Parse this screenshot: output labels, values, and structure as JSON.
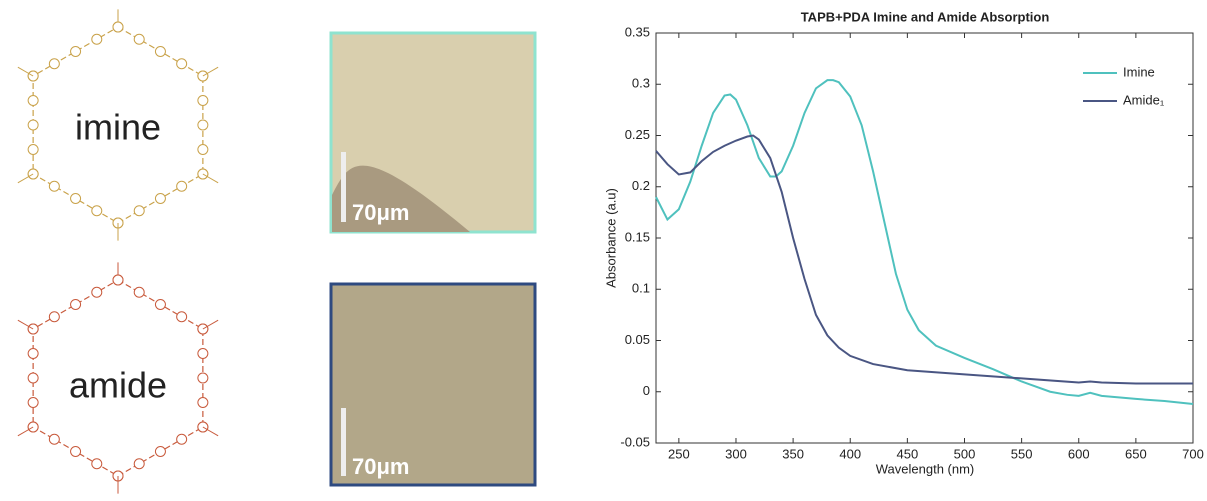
{
  "panels": {
    "structures": [
      "imine",
      "amide"
    ],
    "scale_bars": [
      "70μm",
      "70μm"
    ]
  },
  "chart_data": {
    "type": "line",
    "title": "TAPB+PDA Imine and Amide Absorption",
    "x_label": "Wavelength (nm)",
    "y_label": "Absorbance (a.u)",
    "xlim": [
      230,
      700
    ],
    "ylim": [
      -0.05,
      0.35
    ],
    "xticks": [
      250,
      300,
      350,
      400,
      450,
      500,
      550,
      600,
      650,
      700
    ],
    "yticks": [
      -0.05,
      0,
      0.05,
      0.1,
      0.15,
      0.2,
      0.25,
      0.3,
      0.35
    ],
    "legend": "upper right",
    "series": [
      {
        "name": "Imine",
        "color": "#4fc1be",
        "x": [
          230,
          240,
          250,
          260,
          270,
          280,
          290,
          295,
          300,
          310,
          320,
          330,
          335,
          340,
          350,
          360,
          370,
          380,
          385,
          390,
          400,
          410,
          420,
          430,
          440,
          450,
          460,
          475,
          500,
          525,
          550,
          575,
          590,
          600,
          610,
          620,
          650,
          675,
          700
        ],
        "values": [
          0.19,
          0.168,
          0.178,
          0.205,
          0.24,
          0.272,
          0.289,
          0.29,
          0.285,
          0.26,
          0.228,
          0.21,
          0.21,
          0.215,
          0.24,
          0.272,
          0.296,
          0.304,
          0.304,
          0.302,
          0.288,
          0.26,
          0.215,
          0.165,
          0.115,
          0.08,
          0.06,
          0.045,
          0.033,
          0.022,
          0.01,
          0.0,
          -0.003,
          -0.004,
          -0.001,
          -0.004,
          -0.007,
          -0.009,
          -0.012
        ]
      },
      {
        "name": "Amide₁",
        "color": "#4a5683",
        "x": [
          230,
          240,
          250,
          260,
          270,
          280,
          290,
          300,
          310,
          315,
          320,
          330,
          340,
          350,
          360,
          370,
          380,
          390,
          400,
          420,
          450,
          500,
          550,
          600,
          610,
          620,
          650,
          700
        ],
        "values": [
          0.235,
          0.222,
          0.212,
          0.214,
          0.225,
          0.234,
          0.24,
          0.245,
          0.249,
          0.25,
          0.246,
          0.228,
          0.195,
          0.15,
          0.11,
          0.075,
          0.055,
          0.043,
          0.035,
          0.027,
          0.021,
          0.017,
          0.013,
          0.009,
          0.01,
          0.009,
          0.008,
          0.008
        ]
      }
    ]
  }
}
